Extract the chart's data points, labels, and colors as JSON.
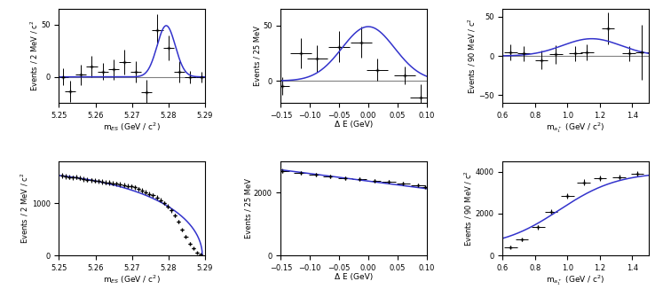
{
  "fig_width": 7.38,
  "fig_height": 3.35,
  "dpi": 100,
  "line_color": "#3333cc",
  "data_color": "black",
  "zero_line_color": "gray",
  "top_left": {
    "xlabel": "m$_{ES}$ (GeV / c$^2$)",
    "ylabel": "Events / 2 MeV / c$^2$",
    "xlim": [
      5.25,
      5.29
    ],
    "ylim": [
      -25,
      65
    ],
    "yticks": [
      0,
      50
    ],
    "xticks": [
      5.25,
      5.26,
      5.27,
      5.28,
      5.29
    ],
    "data_x": [
      5.251,
      5.253,
      5.256,
      5.259,
      5.262,
      5.265,
      5.268,
      5.271,
      5.274,
      5.277,
      5.28,
      5.283,
      5.286,
      5.289
    ],
    "data_y": [
      0,
      -14,
      2,
      10,
      5,
      7,
      14,
      5,
      -15,
      45,
      28,
      5,
      0,
      0
    ],
    "data_xerr": [
      0.0015,
      0.0015,
      0.0015,
      0.0015,
      0.0015,
      0.0015,
      0.0015,
      0.0015,
      0.0015,
      0.0015,
      0.0015,
      0.0015,
      0.0015,
      0.0015
    ],
    "data_yerr": [
      8,
      10,
      10,
      10,
      8,
      10,
      12,
      10,
      12,
      15,
      12,
      10,
      6,
      5
    ],
    "curve_mu": 5.2794,
    "curve_sigma": 0.0025,
    "curve_amp": 49
  },
  "top_mid": {
    "xlabel": "Δ E (GeV)",
    "ylabel": "Events / 25 MeV",
    "xlim": [
      -0.15,
      0.1
    ],
    "ylim": [
      -20,
      65
    ],
    "yticks": [
      0,
      50
    ],
    "xticks": [
      -0.15,
      -0.1,
      -0.05,
      0.0,
      0.05,
      0.1
    ],
    "data_x": [
      -0.148,
      -0.115,
      -0.0875,
      -0.05,
      -0.0125,
      0.015,
      0.0625,
      0.09
    ],
    "data_y": [
      -5,
      25,
      20,
      31,
      35,
      10,
      5,
      -15
    ],
    "data_xerr": [
      0.012,
      0.018,
      0.018,
      0.018,
      0.018,
      0.018,
      0.018,
      0.018
    ],
    "data_yerr": [
      8,
      14,
      12,
      14,
      14,
      10,
      8,
      12
    ],
    "curve_mu": 0.0,
    "curve_sigma": 0.045,
    "curve_amp": 49
  },
  "top_right": {
    "xlabel": "m$_{a_1^+}$ (GeV / c$^2$)",
    "ylabel": "Events / 90 MeV / c$^2$",
    "xlim": [
      0.6,
      1.5
    ],
    "ylim": [
      -60,
      60
    ],
    "yticks": [
      -50,
      0,
      50
    ],
    "xticks": [
      0.6,
      0.8,
      1.0,
      1.2,
      1.4
    ],
    "data_x": [
      0.65,
      0.73,
      0.84,
      0.93,
      1.05,
      1.12,
      1.25,
      1.38,
      1.46
    ],
    "data_y": [
      5,
      3,
      -5,
      2,
      3,
      5,
      35,
      3,
      5
    ],
    "data_xerr": [
      0.04,
      0.04,
      0.04,
      0.04,
      0.04,
      0.04,
      0.04,
      0.04,
      0.04
    ],
    "data_yerr": [
      10,
      10,
      12,
      12,
      10,
      10,
      20,
      10,
      35
    ],
    "curve_mu": 1.15,
    "curve_sigma": 0.18,
    "curve_amp": 22
  },
  "bot_left": {
    "xlabel": "m$_{ES}$ (GeV / c$^2$)",
    "ylabel": "Events / 2 MeV / c$^2$",
    "xlim": [
      5.25,
      5.29
    ],
    "ylim": [
      0,
      1800
    ],
    "yticks": [
      0,
      1000
    ],
    "xticks": [
      5.25,
      5.26,
      5.27,
      5.28,
      5.29
    ],
    "data_x": [
      5.2508,
      5.2518,
      5.2528,
      5.2538,
      5.2548,
      5.2558,
      5.2568,
      5.2578,
      5.2588,
      5.2598,
      5.2608,
      5.2618,
      5.2628,
      5.2638,
      5.2648,
      5.2658,
      5.2668,
      5.2678,
      5.2688,
      5.2698,
      5.2708,
      5.2718,
      5.2728,
      5.2738,
      5.2748,
      5.2758,
      5.2768,
      5.2778,
      5.2788,
      5.2798,
      5.2808,
      5.2818,
      5.2828,
      5.2838,
      5.2848,
      5.2858,
      5.2868,
      5.2878,
      5.2888
    ],
    "data_y": [
      1530,
      1510,
      1500,
      1490,
      1500,
      1480,
      1460,
      1450,
      1440,
      1430,
      1420,
      1410,
      1400,
      1390,
      1380,
      1370,
      1360,
      1350,
      1330,
      1320,
      1300,
      1270,
      1240,
      1210,
      1180,
      1150,
      1110,
      1060,
      1000,
      940,
      860,
      760,
      640,
      490,
      360,
      230,
      130,
      60,
      20
    ],
    "data_xerr": [
      0.0005,
      0.0005,
      0.0005,
      0.0005,
      0.0005,
      0.0005,
      0.0005,
      0.0005,
      0.0005,
      0.0005,
      0.0005,
      0.0005,
      0.0005,
      0.0005,
      0.0005,
      0.0005,
      0.0005,
      0.0005,
      0.0005,
      0.0005,
      0.0005,
      0.0005,
      0.0005,
      0.0005,
      0.0005,
      0.0005,
      0.0005,
      0.0005,
      0.0005,
      0.0005,
      0.0005,
      0.0005,
      0.0005,
      0.0005,
      0.0005,
      0.0005,
      0.0005,
      0.0005,
      0.0005
    ],
    "data_yerr": [
      45,
      45,
      45,
      45,
      45,
      45,
      45,
      45,
      45,
      45,
      45,
      45,
      45,
      45,
      45,
      45,
      45,
      45,
      45,
      45,
      45,
      45,
      45,
      45,
      45,
      45,
      45,
      40,
      40,
      40,
      38,
      35,
      32,
      28,
      25,
      20,
      15,
      12,
      8
    ],
    "curve_cutoff": 5.2893,
    "curve_chi": -20.0,
    "curve_amp_scale": 1530
  },
  "bot_mid": {
    "xlabel": "Δ E (GeV)",
    "ylabel": "Events / 25 MeV",
    "xlim": [
      -0.15,
      0.1
    ],
    "ylim": [
      0,
      3000
    ],
    "yticks": [
      0,
      2000
    ],
    "xticks": [
      -0.15,
      -0.1,
      -0.05,
      0.0,
      0.05,
      0.1
    ],
    "data_x": [
      -0.148,
      -0.115,
      -0.09,
      -0.065,
      -0.04,
      -0.015,
      0.01,
      0.035,
      0.06,
      0.085,
      0.098
    ],
    "data_y": [
      2700,
      2620,
      2570,
      2520,
      2470,
      2430,
      2380,
      2340,
      2290,
      2230,
      2190
    ],
    "data_xerr": [
      0.012,
      0.012,
      0.012,
      0.012,
      0.012,
      0.012,
      0.012,
      0.012,
      0.012,
      0.012,
      0.012
    ],
    "data_yerr": [
      60,
      55,
      55,
      55,
      55,
      55,
      55,
      55,
      55,
      55,
      50
    ],
    "curve_y0": 2730,
    "curve_y1": 2130,
    "curve_x0": -0.15,
    "curve_x1": 0.1
  },
  "bot_right": {
    "xlabel": "m$_{a_1^+}$ (GeV / c$^2$)",
    "ylabel": "Events / 90 MeV / c$^2$",
    "xlim": [
      0.6,
      1.5
    ],
    "ylim": [
      0,
      4500
    ],
    "yticks": [
      0,
      2000,
      4000
    ],
    "xticks": [
      0.6,
      0.8,
      1.0,
      1.2,
      1.4
    ],
    "data_x": [
      0.65,
      0.72,
      0.82,
      0.9,
      1.0,
      1.1,
      1.2,
      1.32,
      1.43
    ],
    "data_y": [
      400,
      750,
      1350,
      2100,
      2850,
      3500,
      3700,
      3750,
      3900
    ],
    "data_xerr": [
      0.04,
      0.04,
      0.04,
      0.04,
      0.04,
      0.04,
      0.04,
      0.04,
      0.04
    ],
    "data_yerr": [
      60,
      80,
      100,
      120,
      130,
      130,
      120,
      120,
      120
    ],
    "sigmoid_x0": 0.95,
    "sigmoid_k": 5.5,
    "sigmoid_amp": 3650,
    "sigmoid_base": 350
  }
}
